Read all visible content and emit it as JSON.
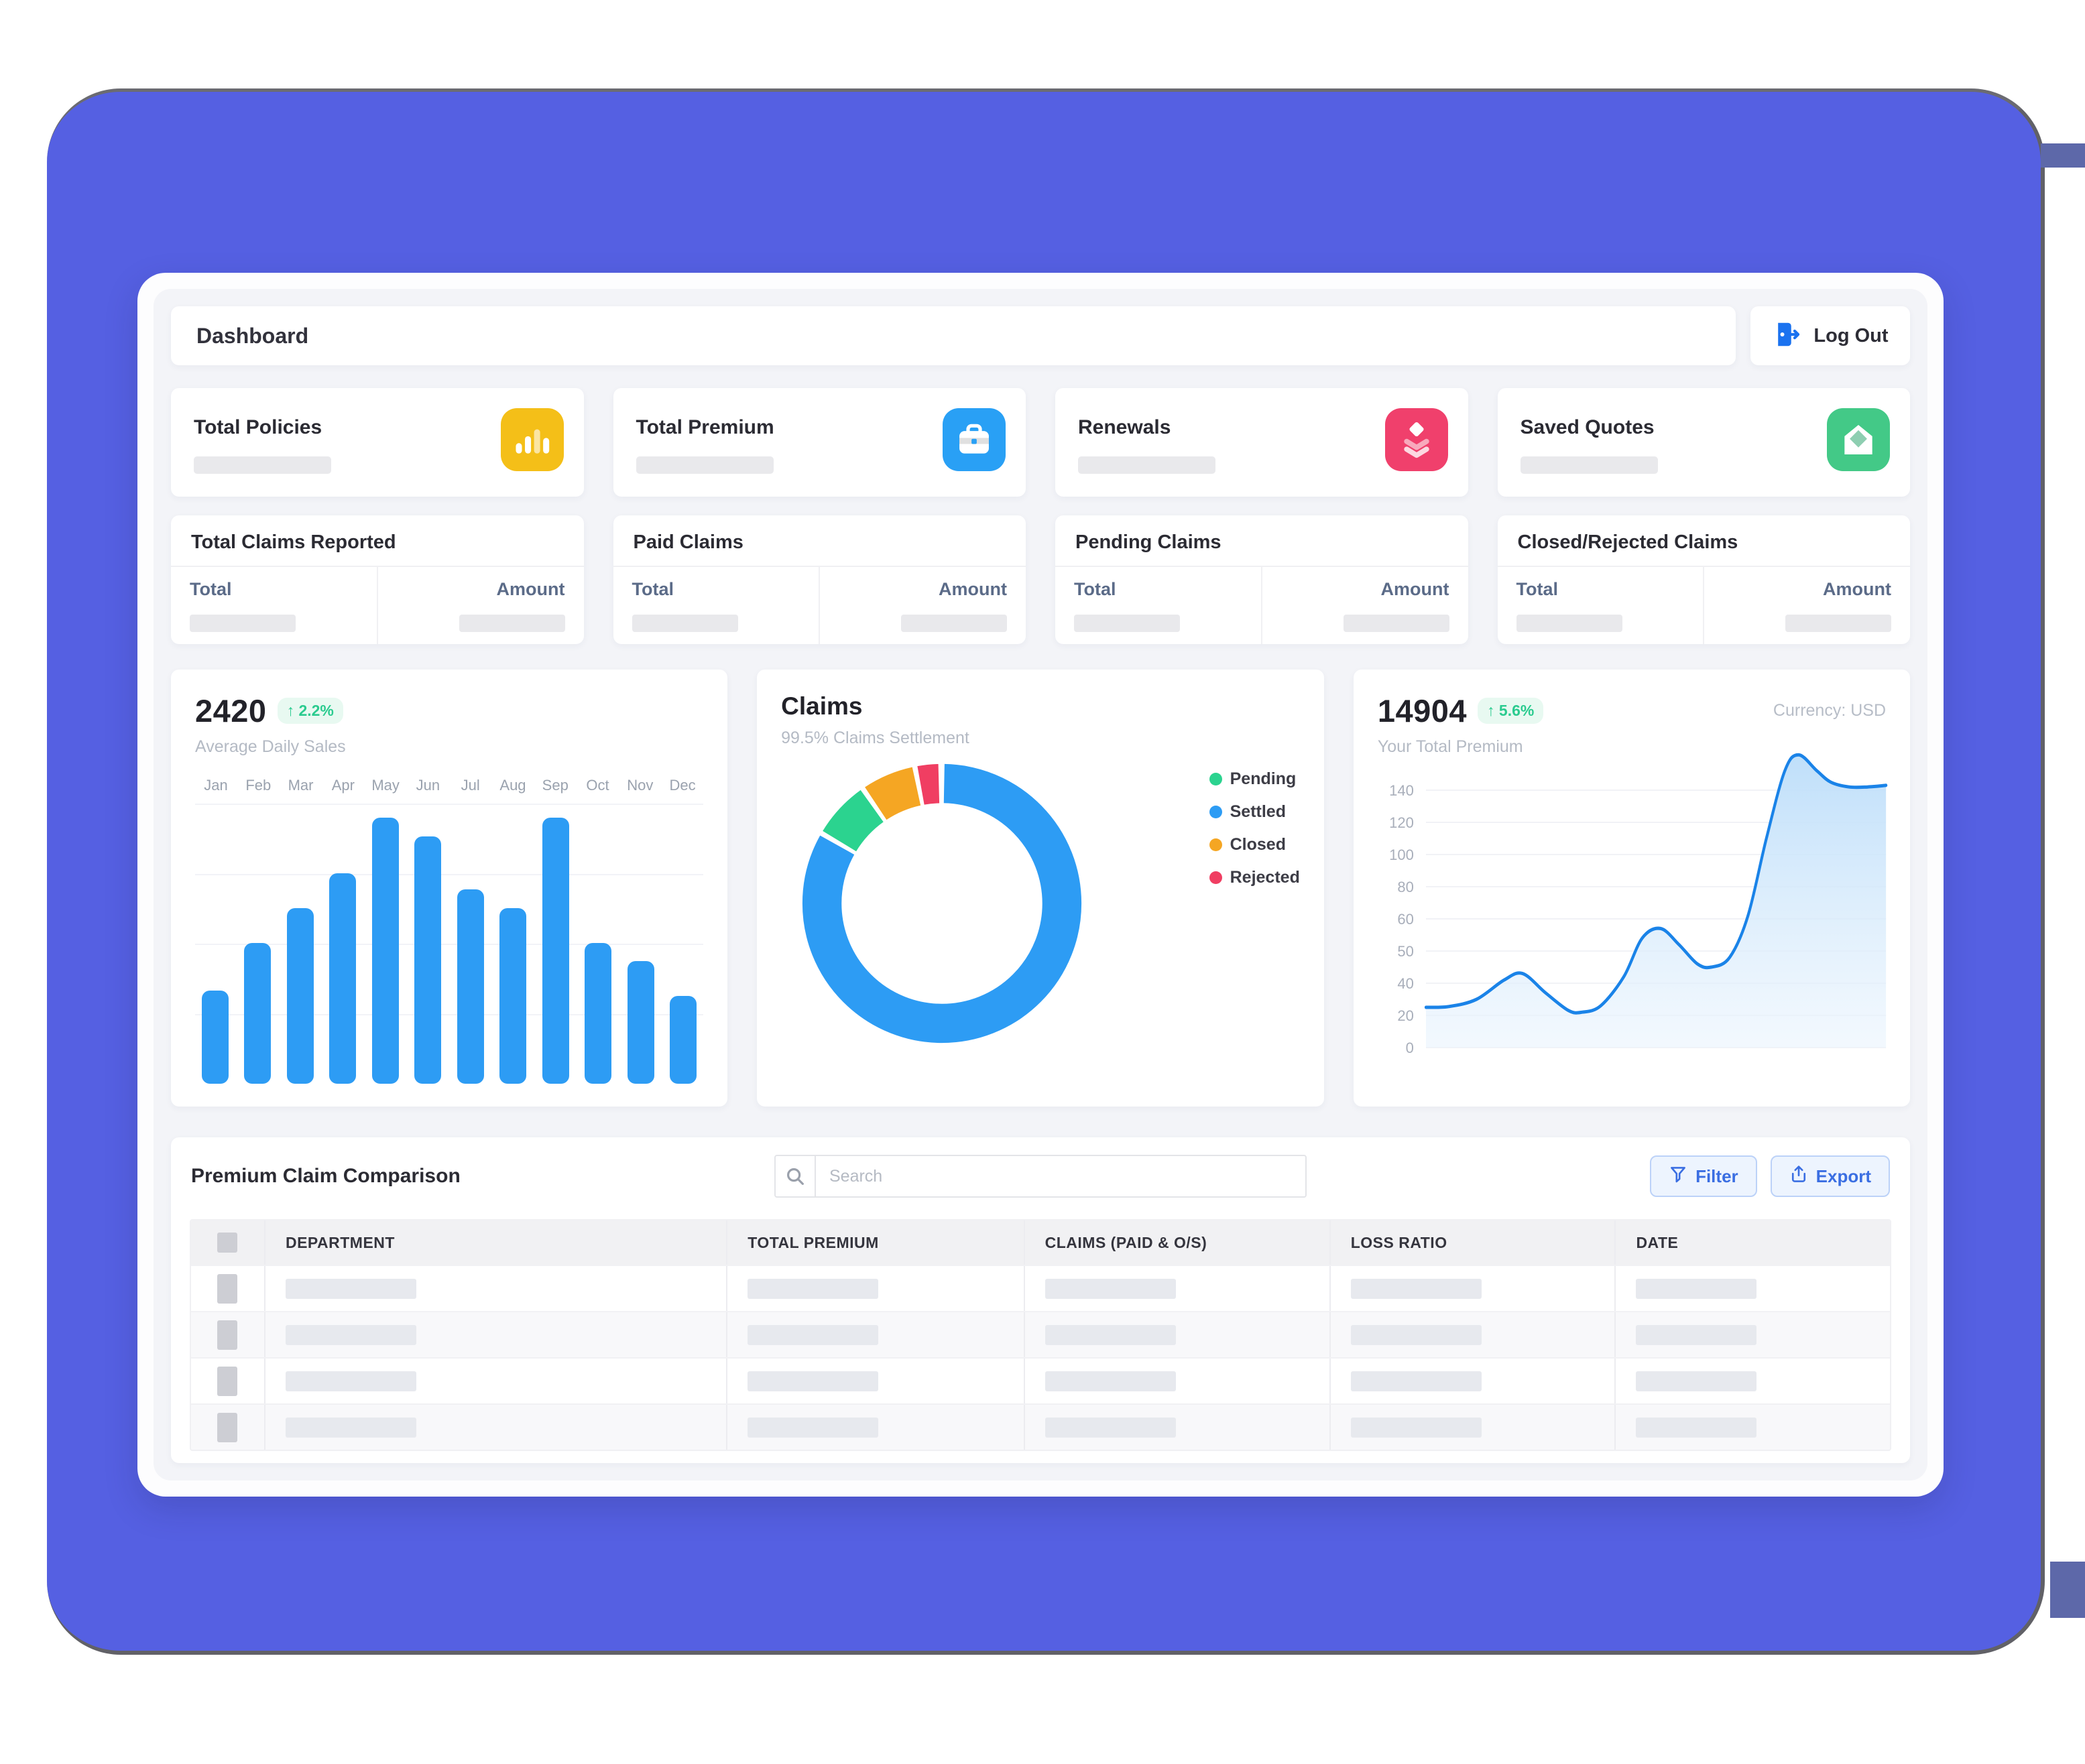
{
  "app": {
    "topbar": {
      "title": "Dashboard",
      "logout_label": "Log Out"
    },
    "stat_cards": [
      {
        "label": "Total Policies",
        "icon": "bar-chart-icon",
        "icon_bg": "#F4BF18"
      },
      {
        "label": "Total Premium",
        "icon": "briefcase-icon",
        "icon_bg": "#29A0F5"
      },
      {
        "label": "Renewals",
        "icon": "layers-icon",
        "icon_bg": "#F0406C"
      },
      {
        "label": "Saved Quotes",
        "icon": "envelope-icon",
        "icon_bg": "#43C987"
      }
    ],
    "claim_cards": [
      {
        "title": "Total Claims Reported",
        "left_label": "Total",
        "right_label": "Amount"
      },
      {
        "title": "Paid Claims",
        "left_label": "Total",
        "right_label": "Amount"
      },
      {
        "title": "Pending Claims",
        "left_label": "Total",
        "right_label": "Amount"
      },
      {
        "title": "Closed/Rejected Claims",
        "left_label": "Total",
        "right_label": "Amount"
      }
    ],
    "table": {
      "title": "Premium Claim Comparison",
      "search_placeholder": "Search",
      "buttons": [
        {
          "label": "Filter",
          "icon": "filter-funnel-icon"
        },
        {
          "label": "Export",
          "icon": "export-icon"
        }
      ],
      "columns": [
        "DEPARTMENT",
        "TOTAL PREMIUM",
        "CLAIMS (PAID & O/S)",
        "LOSS RATIO",
        "DATE"
      ],
      "row_count": 4
    }
  },
  "chart_data": [
    {
      "type": "bar",
      "title": "2420",
      "change": "↑ 2.2%",
      "subtitle": "Average Daily Sales",
      "categories": [
        "Jan",
        "Feb",
        "Mar",
        "Apr",
        "May",
        "Jun",
        "Jul",
        "Aug",
        "Sep",
        "Oct",
        "Nov",
        "Dec"
      ],
      "values": [
        35,
        53,
        66,
        79,
        100,
        93,
        73,
        66,
        100,
        53,
        46,
        33
      ],
      "ylim": [
        0,
        100
      ],
      "bar_color": "#2d9cf4",
      "grid": true,
      "x_labels_position": "top"
    },
    {
      "type": "pie",
      "donut": true,
      "title": "Claims",
      "subtitle": "99.5% Claims Settlement",
      "legend_position": "right",
      "legend": [
        {
          "label": "Pending",
          "value": 7,
          "color": "#2bd38f"
        },
        {
          "label": "Settled",
          "value": 83.5,
          "color": "#2d9cf4"
        },
        {
          "label": "Closed",
          "value": 6.5,
          "color": "#f5a623"
        },
        {
          "label": "Rejected",
          "value": 3,
          "color": "#f03e62"
        }
      ],
      "draw_order_from_top": [
        "Settled",
        "Pending",
        "Closed",
        "Rejected"
      ]
    },
    {
      "type": "area",
      "title": "14904",
      "change": "↑ 5.6%",
      "subtitle": "Your Total Premium",
      "note": "Currency: USD",
      "y_ticks": [
        140,
        120,
        100,
        80,
        60,
        50,
        40,
        20,
        0
      ],
      "line_color": "#1a83e8",
      "fill_color": "#c9e3fa",
      "points": [
        [
          0,
          25
        ],
        [
          5,
          25.5
        ],
        [
          11,
          30
        ],
        [
          17,
          41
        ],
        [
          21,
          43
        ],
        [
          26,
          34
        ],
        [
          31,
          23
        ],
        [
          34,
          22
        ],
        [
          38,
          26
        ],
        [
          43,
          42
        ],
        [
          47,
          54
        ],
        [
          51,
          57
        ],
        [
          55,
          52
        ],
        [
          59,
          46
        ],
        [
          62,
          45
        ],
        [
          66,
          48
        ],
        [
          70,
          62
        ],
        [
          74,
          110
        ],
        [
          78,
          152
        ],
        [
          81,
          162
        ],
        [
          85,
          152
        ],
        [
          88,
          145
        ],
        [
          92,
          142
        ],
        [
          96,
          142
        ],
        [
          100,
          143
        ]
      ],
      "grid": true
    }
  ]
}
